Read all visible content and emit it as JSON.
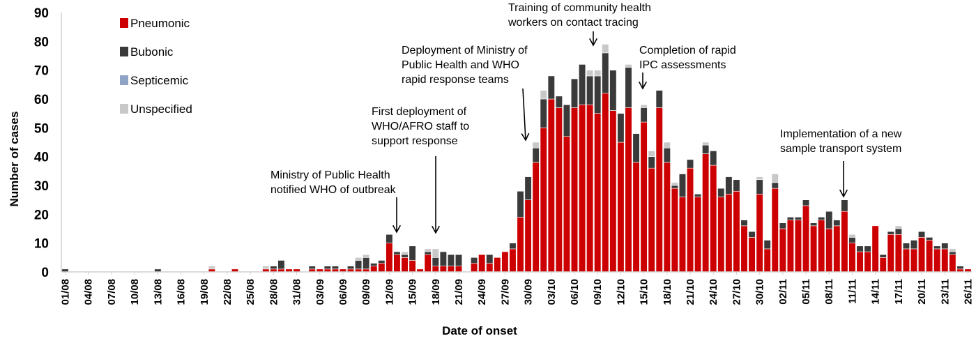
{
  "chart_data": {
    "type": "bar",
    "stacked": true,
    "xlabel": "Date of onset",
    "ylabel": "Number of cases",
    "ylim": [
      0,
      90
    ],
    "yticks": [
      0,
      10,
      20,
      30,
      40,
      50,
      60,
      70,
      80,
      90
    ],
    "grid": false,
    "legend_position": "top-left",
    "x_tick_labels": [
      "01/08",
      "04/08",
      "07/08",
      "10/08",
      "13/08",
      "16/08",
      "19/08",
      "22/08",
      "25/08",
      "28/08",
      "31/08",
      "03/09",
      "06/09",
      "09/09",
      "12/09",
      "15/09",
      "18/09",
      "21/09",
      "24/09",
      "27/09",
      "30/09",
      "03/10",
      "06/10",
      "09/10",
      "12/10",
      "15/10",
      "18/10",
      "21/10",
      "24/10",
      "27/10",
      "30/10",
      "02/11",
      "05/11",
      "08/11",
      "11/11",
      "14/11",
      "17/11",
      "20/11",
      "23/11",
      "26/11"
    ],
    "categories": [
      "01/08",
      "02/08",
      "03/08",
      "04/08",
      "05/08",
      "06/08",
      "07/08",
      "08/08",
      "09/08",
      "10/08",
      "11/08",
      "12/08",
      "13/08",
      "14/08",
      "15/08",
      "16/08",
      "17/08",
      "18/08",
      "19/08",
      "20/08",
      "21/08",
      "22/08",
      "23/08",
      "24/08",
      "25/08",
      "26/08",
      "27/08",
      "28/08",
      "29/08",
      "30/08",
      "31/08",
      "01/09",
      "02/09",
      "03/09",
      "04/09",
      "05/09",
      "06/09",
      "07/09",
      "08/09",
      "09/09",
      "10/09",
      "11/09",
      "12/09",
      "13/09",
      "14/09",
      "15/09",
      "16/09",
      "17/09",
      "18/09",
      "19/09",
      "20/09",
      "21/09",
      "22/09",
      "23/09",
      "24/09",
      "25/09",
      "26/09",
      "27/09",
      "28/09",
      "29/09",
      "30/09",
      "01/10",
      "02/10",
      "03/10",
      "04/10",
      "05/10",
      "06/10",
      "07/10",
      "08/10",
      "09/10",
      "10/10",
      "11/10",
      "12/10",
      "13/10",
      "14/10",
      "15/10",
      "16/10",
      "17/10",
      "18/10",
      "19/10",
      "20/10",
      "21/10",
      "22/10",
      "23/10",
      "24/10",
      "25/10",
      "26/10",
      "27/10",
      "28/10",
      "29/10",
      "30/10",
      "31/10",
      "01/11",
      "02/11",
      "03/11",
      "04/11",
      "05/11",
      "06/11",
      "07/11",
      "08/11",
      "09/11",
      "10/11",
      "11/11",
      "12/11",
      "13/11",
      "14/11",
      "15/11",
      "16/11",
      "17/11",
      "18/11",
      "19/11",
      "20/11",
      "21/11",
      "22/11",
      "23/11",
      "24/11",
      "25/11",
      "26/11"
    ],
    "series": [
      {
        "name": "Pneumonic",
        "color": "#cc0000",
        "values": [
          0,
          0,
          0,
          0,
          0,
          0,
          0,
          0,
          0,
          0,
          0,
          0,
          0,
          0,
          0,
          0,
          0,
          0,
          0,
          1,
          0,
          0,
          1,
          0,
          0,
          0,
          1,
          1,
          1,
          1,
          1,
          0,
          1,
          1,
          1,
          1,
          1,
          1,
          1,
          1,
          2,
          3,
          10,
          6,
          5,
          4,
          1,
          6,
          2,
          2,
          2,
          2,
          0,
          3,
          6,
          3,
          5,
          7,
          8,
          19,
          25,
          38,
          50,
          60,
          57,
          47,
          57,
          58,
          58,
          55,
          62,
          56,
          45,
          57,
          38,
          52,
          36,
          57,
          38,
          29,
          26,
          36,
          26,
          41,
          37,
          26,
          27,
          28,
          16,
          12,
          27,
          8,
          29,
          15,
          18,
          18,
          23,
          16,
          18,
          15,
          16,
          21,
          10,
          7,
          7,
          16,
          5,
          13,
          13,
          8,
          8,
          12,
          11,
          8,
          8,
          6,
          1,
          1
        ]
      },
      {
        "name": "Bubonic",
        "color": "#3a3a3a",
        "values": [
          1,
          0,
          0,
          0,
          0,
          0,
          0,
          0,
          0,
          0,
          0,
          0,
          1,
          0,
          0,
          0,
          0,
          0,
          0,
          0,
          0,
          0,
          0,
          0,
          0,
          0,
          0,
          1,
          3,
          0,
          0,
          0,
          1,
          0,
          1,
          1,
          0,
          1,
          3,
          4,
          1,
          1,
          3,
          1,
          1,
          5,
          0,
          1,
          3,
          5,
          4,
          4,
          0,
          2,
          0,
          3,
          0,
          0,
          2,
          9,
          8,
          5,
          10,
          8,
          4,
          11,
          10,
          14,
          10,
          13,
          14,
          14,
          10,
          14,
          10,
          5,
          4,
          6,
          5,
          1,
          8,
          3,
          1,
          3,
          5,
          3,
          6,
          4,
          2,
          2,
          5,
          3,
          2,
          2,
          1,
          1,
          2,
          1,
          1,
          6,
          2,
          4,
          2,
          2,
          2,
          0,
          1,
          1,
          2,
          2,
          3,
          2,
          1,
          1,
          2,
          1,
          1,
          0
        ]
      },
      {
        "name": "Septicemic",
        "color": "#8fa3c4",
        "values": [
          0,
          0,
          0,
          0,
          0,
          0,
          0,
          0,
          0,
          0,
          0,
          0,
          0,
          0,
          0,
          0,
          0,
          0,
          0,
          0,
          0,
          0,
          0,
          0,
          0,
          0,
          0,
          0,
          0,
          0,
          0,
          0,
          0,
          0,
          0,
          0,
          0,
          0,
          0,
          0,
          0,
          0,
          0,
          0,
          0,
          0,
          0,
          0,
          0,
          0,
          0,
          0,
          0,
          0,
          0,
          0,
          0,
          0,
          0,
          0,
          0,
          0,
          0,
          0,
          0,
          0,
          0,
          0,
          0,
          0,
          0,
          0,
          0,
          0,
          0,
          0,
          0,
          0,
          0,
          0,
          0,
          0,
          0,
          0,
          0,
          0,
          0,
          0,
          0,
          0,
          0,
          0,
          0,
          0,
          0,
          0,
          0,
          0,
          0,
          0,
          0,
          0,
          0,
          0,
          0,
          0,
          0,
          0,
          0,
          0,
          0,
          0,
          0,
          0,
          0,
          0,
          0,
          0
        ]
      },
      {
        "name": "Unspecified",
        "color": "#c8c8c8",
        "values": [
          0,
          0,
          0,
          0,
          0,
          0,
          0,
          0,
          0,
          0,
          0,
          0,
          0,
          0,
          0,
          0,
          0,
          0,
          0,
          1,
          0,
          0,
          0,
          0,
          0,
          0,
          1,
          0,
          0,
          0,
          0,
          0,
          0,
          0,
          0,
          0,
          0,
          0,
          1,
          1,
          0,
          0,
          0,
          0,
          1,
          0,
          0,
          1,
          3,
          0,
          0,
          0,
          0,
          0,
          0,
          0,
          0,
          0,
          0,
          0,
          0,
          2,
          3,
          0,
          0,
          0,
          0,
          0,
          2,
          2,
          3,
          0,
          0,
          1,
          0,
          1,
          2,
          0,
          2,
          1,
          0,
          0,
          0,
          1,
          0,
          0,
          0,
          0,
          0,
          0,
          1,
          0,
          3,
          0,
          0,
          0,
          0,
          0,
          0,
          0,
          0,
          0,
          1,
          0,
          0,
          0,
          0,
          0,
          1,
          0,
          0,
          0,
          0,
          0,
          0,
          1,
          0,
          0
        ]
      }
    ],
    "annotations": [
      {
        "lines": [
          "Ministry of Public Health",
          "notified WHO of outbreak"
        ],
        "date": "12/09"
      },
      {
        "lines": [
          "First deployment of",
          "WHO/AFRO staff to",
          "support response"
        ],
        "date": "18/09"
      },
      {
        "lines": [
          "Deployment of Ministry of",
          "Public Health and WHO",
          "rapid response teams"
        ],
        "date": "30/09"
      },
      {
        "lines": [
          "Training of community health",
          "workers on contact tracing"
        ],
        "date": "09/10"
      },
      {
        "lines": [
          "Completion of rapid",
          "IPC assessments"
        ],
        "date": "15/10"
      },
      {
        "lines": [
          "Implementation of a new",
          "sample transport system"
        ],
        "date": "10/11"
      }
    ]
  }
}
